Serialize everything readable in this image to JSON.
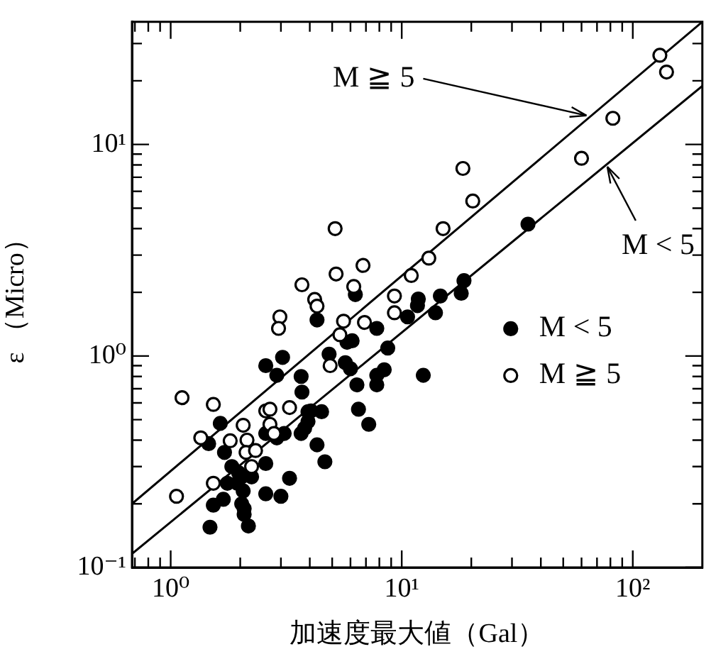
{
  "chart_data": {
    "type": "scatter",
    "xlabel": "加速度最大値（Gal）",
    "ylabel": "ε （Micro）",
    "log": "xy",
    "xlim": [
      0.68,
      200
    ],
    "ylim": [
      0.1,
      38
    ],
    "xticks": [
      {
        "value": 0.7,
        "label": null
      },
      {
        "value": 0.8,
        "label": null
      },
      {
        "value": 0.9,
        "label": null
      },
      {
        "value": 1,
        "label": "10⁰"
      },
      {
        "value": 2,
        "label": null
      },
      {
        "value": 3,
        "label": null
      },
      {
        "value": 4,
        "label": null
      },
      {
        "value": 5,
        "label": null
      },
      {
        "value": 6,
        "label": null
      },
      {
        "value": 7,
        "label": null
      },
      {
        "value": 8,
        "label": null
      },
      {
        "value": 9,
        "label": null
      },
      {
        "value": 10,
        "label": "10¹"
      },
      {
        "value": 20,
        "label": null
      },
      {
        "value": 30,
        "label": null
      },
      {
        "value": 40,
        "label": null
      },
      {
        "value": 50,
        "label": null
      },
      {
        "value": 60,
        "label": null
      },
      {
        "value": 70,
        "label": null
      },
      {
        "value": 80,
        "label": null
      },
      {
        "value": 90,
        "label": null
      },
      {
        "value": 100,
        "label": "10²"
      }
    ],
    "yticks": [
      {
        "value": 0.1,
        "label": "10⁻¹"
      },
      {
        "value": 0.2,
        "label": null
      },
      {
        "value": 0.3,
        "label": null
      },
      {
        "value": 0.4,
        "label": null
      },
      {
        "value": 0.5,
        "label": null
      },
      {
        "value": 0.6,
        "label": null
      },
      {
        "value": 0.7,
        "label": null
      },
      {
        "value": 0.8,
        "label": null
      },
      {
        "value": 0.9,
        "label": null
      },
      {
        "value": 1,
        "label": "10⁰"
      },
      {
        "value": 2,
        "label": null
      },
      {
        "value": 3,
        "label": null
      },
      {
        "value": 4,
        "label": null
      },
      {
        "value": 5,
        "label": null
      },
      {
        "value": 6,
        "label": null
      },
      {
        "value": 7,
        "label": null
      },
      {
        "value": 8,
        "label": null
      },
      {
        "value": 9,
        "label": null
      },
      {
        "value": 10,
        "label": "10¹"
      },
      {
        "value": 20,
        "label": null
      },
      {
        "value": 30,
        "label": null
      }
    ],
    "grid": false,
    "legend": "right",
    "marker": "circle",
    "series": [
      {
        "name": "M < 5",
        "color": "#000000",
        "x": [
          35.2,
          18.6,
          14.7,
          11.8,
          11.7,
          10.6,
          14.0,
          7.8,
          4.3,
          5.8,
          6.1,
          8.7,
          4.85,
          5.7,
          6.0,
          8.4,
          7.8,
          7.8,
          12.4,
          6.4,
          6.5,
          7.2,
          2.58,
          3.05,
          2.88,
          3.67,
          3.7,
          1.64,
          1.46,
          1.71,
          1.84,
          1.97,
          1.94,
          1.76,
          1.69,
          1.53,
          2.03,
          2.08,
          2.17,
          1.48,
          2.58,
          3.0,
          3.27,
          2.58,
          2.58,
          2.88,
          3.1,
          3.67,
          3.8,
          3.93,
          4.5,
          4.05,
          3.93,
          4.3,
          4.65,
          2.03,
          2.24,
          2.06,
          2.08,
          18.1,
          6.3
        ],
        "values": [
          4.2,
          2.27,
          1.92,
          1.86,
          1.73,
          1.53,
          1.6,
          1.35,
          1.48,
          1.16,
          1.18,
          1.09,
          1.02,
          0.93,
          0.87,
          0.86,
          0.81,
          0.73,
          0.81,
          0.73,
          0.56,
          0.475,
          0.9,
          0.985,
          0.81,
          0.8,
          0.675,
          0.48,
          0.385,
          0.35,
          0.3,
          0.28,
          0.25,
          0.25,
          0.21,
          0.197,
          0.2,
          0.178,
          0.157,
          0.155,
          0.223,
          0.217,
          0.264,
          0.31,
          0.43,
          0.41,
          0.43,
          0.43,
          0.455,
          0.545,
          0.545,
          0.55,
          0.49,
          0.38,
          0.316,
          0.268,
          0.268,
          0.23,
          0.19,
          1.98,
          1.95
        ]
      },
      {
        "name": "M ≧ 5",
        "color": "#ffffff",
        "x": [
          131,
          140,
          82,
          60,
          18.4,
          20.3,
          15.1,
          5.15,
          13.1,
          11.0,
          5.2,
          6.8,
          3.7,
          6.2,
          4.2,
          4.3,
          2.97,
          2.93,
          9.3,
          9.3,
          5.6,
          6.9,
          5.4,
          4.9,
          1.12,
          1.53,
          2.58,
          2.69,
          3.27,
          2.06,
          2.69,
          1.35,
          1.81,
          2.14,
          2.12,
          2.33,
          2.24,
          1.53,
          1.06,
          2.8
        ],
        "values": [
          26.4,
          22,
          13.3,
          8.6,
          7.7,
          5.4,
          4.0,
          4.0,
          2.9,
          2.4,
          2.44,
          2.68,
          2.17,
          2.13,
          1.85,
          1.72,
          1.53,
          1.35,
          1.92,
          1.6,
          1.46,
          1.44,
          1.26,
          0.9,
          0.635,
          0.59,
          0.55,
          0.56,
          0.57,
          0.47,
          0.475,
          0.41,
          0.397,
          0.4,
          0.35,
          0.357,
          0.3,
          0.25,
          0.217,
          0.43
        ]
      },
      {
        "type": "line",
        "color": "#000000",
        "marker": "none",
        "x": [
          0.68,
          200
        ],
        "values": [
          0.2,
          38
        ]
      },
      {
        "type": "line",
        "color": "#000000",
        "marker": "none",
        "x": [
          0.68,
          200
        ],
        "values": [
          0.116,
          18.9
        ]
      }
    ],
    "annotations": [
      {
        "text": "M ≧ 5",
        "x": 63,
        "y": 13.7
      },
      {
        "text": "M < 5",
        "x": 77.6,
        "y": 7.85
      }
    ]
  }
}
